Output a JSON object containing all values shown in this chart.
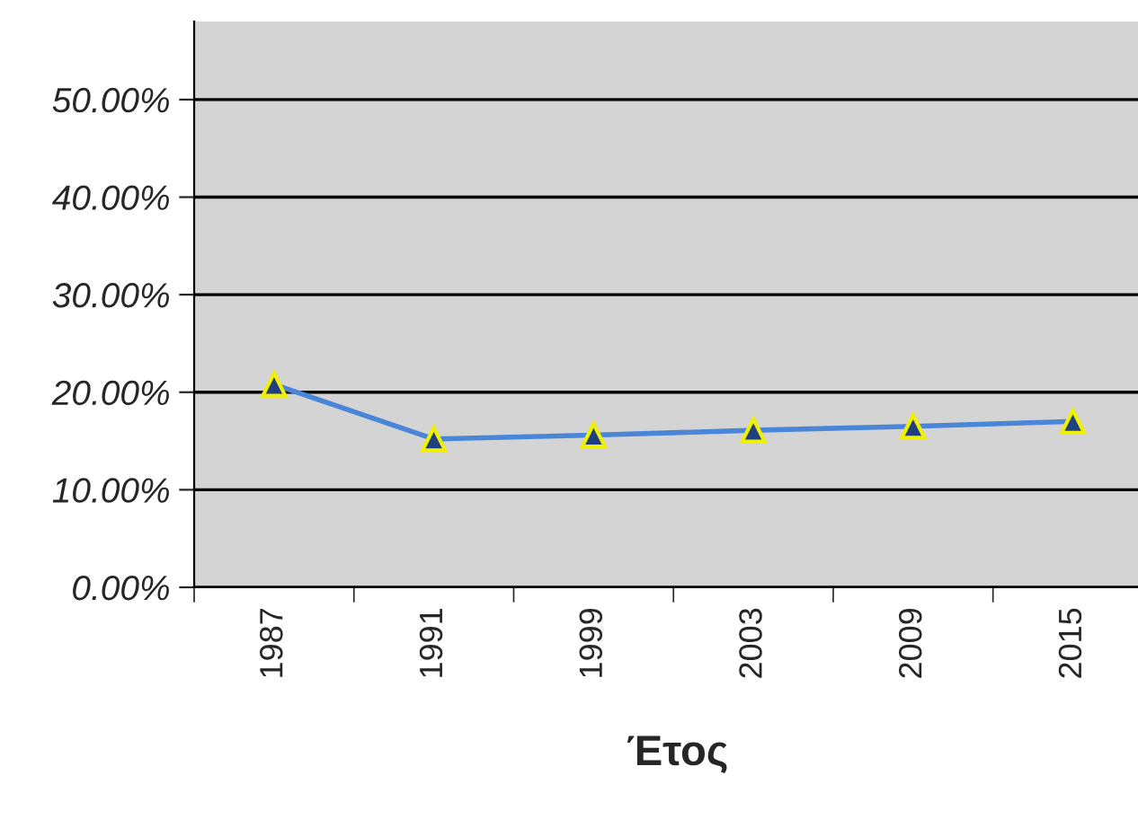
{
  "chart_data": {
    "type": "line",
    "xlabel": "Έτος",
    "categories": [
      "1987",
      "1991",
      "1999",
      "2003",
      "2009",
      "2015"
    ],
    "series": [
      {
        "color": "#4a86d8",
        "values": [
          20.8,
          15.2,
          15.6,
          16.1,
          16.5,
          17.0
        ]
      }
    ],
    "marker": "triangle",
    "line_style": "solid",
    "ylim": [
      0,
      58
    ],
    "yticks": [
      {
        "value": 0,
        "label": "0.00%"
      },
      {
        "value": 10,
        "label": "10.00%"
      },
      {
        "value": 20,
        "label": "20.00%"
      },
      {
        "value": 30,
        "label": "30.00%"
      },
      {
        "value": 40,
        "label": "40.00%"
      },
      {
        "value": 50,
        "label": "50.00%"
      }
    ],
    "grid": "y"
  }
}
